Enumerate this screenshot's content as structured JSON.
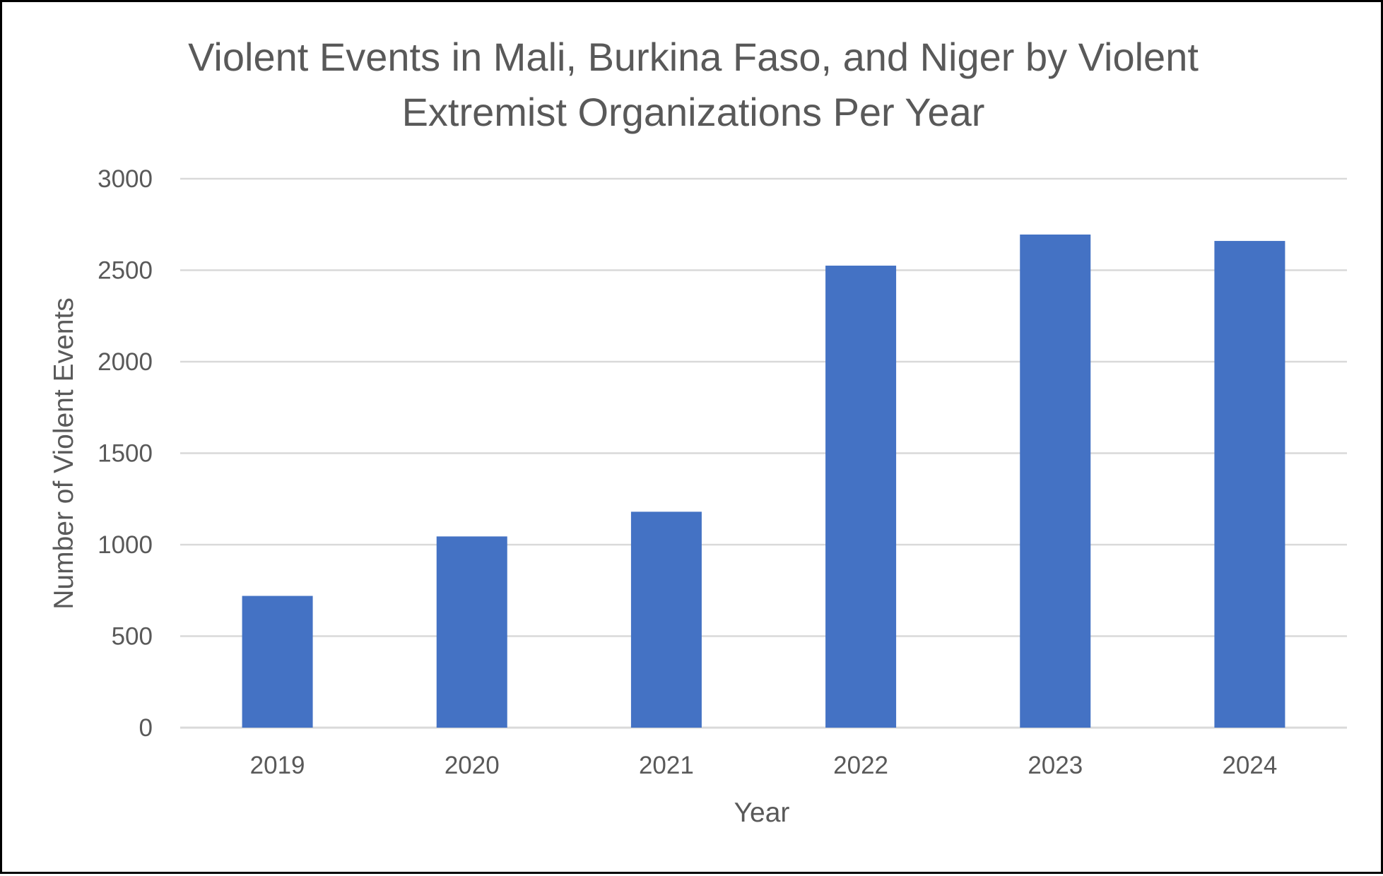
{
  "chart_data": {
    "type": "bar",
    "title_lines": [
      "Violent Events in Mali, Burkina Faso, and Niger by Violent",
      "Extremist Organizations Per Year"
    ],
    "xlabel": "Year",
    "ylabel": "Number of Violent Events",
    "categories": [
      "2019",
      "2020",
      "2021",
      "2022",
      "2023",
      "2024"
    ],
    "values": [
      720,
      1045,
      1180,
      2525,
      2695,
      2660
    ],
    "ylim": [
      0,
      3000
    ],
    "yticks": [
      0,
      500,
      1000,
      1500,
      2000,
      2500,
      3000
    ],
    "grid": true,
    "legend": "none",
    "bar_color": "#4472C4"
  }
}
